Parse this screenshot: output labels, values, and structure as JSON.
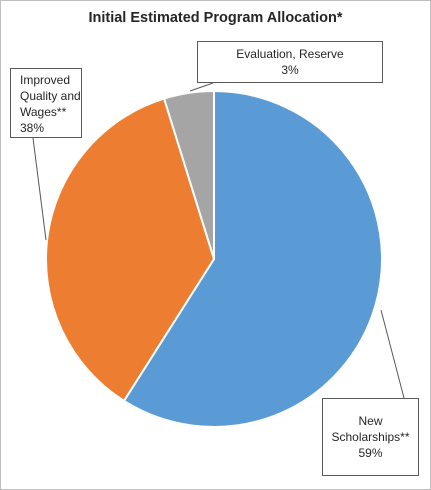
{
  "chart_data": {
    "type": "pie",
    "title": "Initial Estimated Program Allocation*",
    "slices": [
      {
        "label": [
          "New",
          "Scholarships**"
        ],
        "value": 59,
        "value_label": "59%",
        "color": "#5b9bd5"
      },
      {
        "label": [
          "Improved",
          "Quality and",
          "Wages**"
        ],
        "value": 38,
        "value_label": "38%",
        "color": "#ed7d31"
      },
      {
        "label": [
          "Evaluation, Reserve"
        ],
        "value": 3,
        "value_label": "3%",
        "color": "#a5a5a5"
      }
    ],
    "start": "12 o'clock",
    "direction": "clockwise",
    "legend": "none",
    "labels": "callouts with leader lines"
  }
}
